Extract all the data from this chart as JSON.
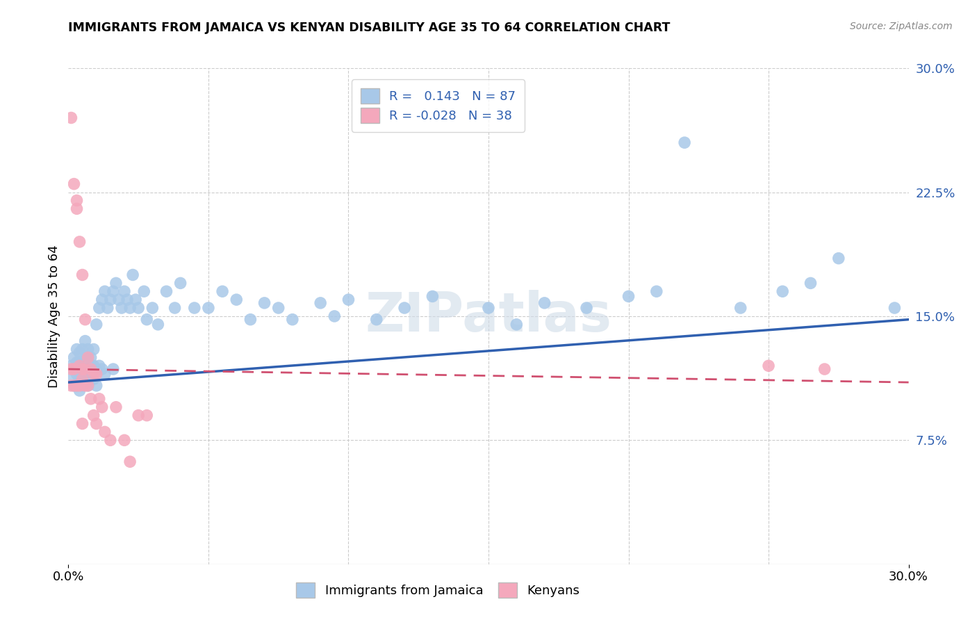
{
  "title": "IMMIGRANTS FROM JAMAICA VS KENYAN DISABILITY AGE 35 TO 64 CORRELATION CHART",
  "source": "Source: ZipAtlas.com",
  "ylabel": "Disability Age 35 to 64",
  "xlim": [
    0,
    0.3
  ],
  "ylim": [
    0,
    0.3
  ],
  "xtick_vals": [
    0.0,
    0.3
  ],
  "xticklabels": [
    "0.0%",
    "30.0%"
  ],
  "yticks_right": [
    0.075,
    0.15,
    0.225,
    0.3
  ],
  "ytick_right_labels": [
    "7.5%",
    "15.0%",
    "22.5%",
    "30.0%"
  ],
  "jamaica_R": 0.143,
  "jamaica_N": 87,
  "kenya_R": -0.028,
  "kenya_N": 38,
  "jamaica_color": "#a8c8e8",
  "kenya_color": "#f4a8bc",
  "jamaica_line_color": "#3060b0",
  "kenya_line_color": "#d05070",
  "background_color": "#ffffff",
  "watermark": "ZIPatlas",
  "legend_jamaica": "Immigrants from Jamaica",
  "legend_kenya": "Kenyans",
  "jamaica_x": [
    0.001,
    0.001,
    0.002,
    0.002,
    0.002,
    0.003,
    0.003,
    0.003,
    0.003,
    0.004,
    0.004,
    0.004,
    0.004,
    0.004,
    0.005,
    0.005,
    0.005,
    0.005,
    0.006,
    0.006,
    0.006,
    0.006,
    0.007,
    0.007,
    0.007,
    0.007,
    0.008,
    0.008,
    0.008,
    0.009,
    0.009,
    0.009,
    0.01,
    0.01,
    0.01,
    0.011,
    0.011,
    0.012,
    0.012,
    0.013,
    0.013,
    0.014,
    0.015,
    0.016,
    0.016,
    0.017,
    0.018,
    0.019,
    0.02,
    0.021,
    0.022,
    0.023,
    0.024,
    0.025,
    0.027,
    0.028,
    0.03,
    0.032,
    0.035,
    0.038,
    0.04,
    0.045,
    0.05,
    0.055,
    0.06,
    0.065,
    0.07,
    0.075,
    0.08,
    0.09,
    0.095,
    0.1,
    0.11,
    0.12,
    0.13,
    0.15,
    0.16,
    0.17,
    0.185,
    0.2,
    0.21,
    0.22,
    0.24,
    0.255,
    0.265,
    0.275,
    0.295
  ],
  "jamaica_y": [
    0.12,
    0.113,
    0.125,
    0.108,
    0.118,
    0.122,
    0.115,
    0.108,
    0.13,
    0.118,
    0.112,
    0.128,
    0.105,
    0.122,
    0.13,
    0.115,
    0.108,
    0.12,
    0.125,
    0.118,
    0.112,
    0.135,
    0.125,
    0.115,
    0.108,
    0.13,
    0.12,
    0.125,
    0.115,
    0.13,
    0.12,
    0.112,
    0.145,
    0.118,
    0.108,
    0.155,
    0.12,
    0.16,
    0.118,
    0.165,
    0.115,
    0.155,
    0.16,
    0.165,
    0.118,
    0.17,
    0.16,
    0.155,
    0.165,
    0.16,
    0.155,
    0.175,
    0.16,
    0.155,
    0.165,
    0.148,
    0.155,
    0.145,
    0.165,
    0.155,
    0.17,
    0.155,
    0.155,
    0.165,
    0.16,
    0.148,
    0.158,
    0.155,
    0.148,
    0.158,
    0.15,
    0.16,
    0.148,
    0.155,
    0.162,
    0.155,
    0.145,
    0.158,
    0.155,
    0.162,
    0.165,
    0.255,
    0.155,
    0.165,
    0.17,
    0.185,
    0.155
  ],
  "kenya_x": [
    0.001,
    0.001,
    0.001,
    0.002,
    0.002,
    0.002,
    0.003,
    0.003,
    0.003,
    0.004,
    0.004,
    0.004,
    0.005,
    0.005,
    0.005,
    0.005,
    0.006,
    0.006,
    0.006,
    0.007,
    0.007,
    0.008,
    0.008,
    0.009,
    0.009,
    0.01,
    0.01,
    0.011,
    0.012,
    0.013,
    0.015,
    0.017,
    0.02,
    0.022,
    0.025,
    0.028,
    0.25,
    0.27
  ],
  "kenya_y": [
    0.118,
    0.108,
    0.27,
    0.23,
    0.118,
    0.108,
    0.22,
    0.215,
    0.108,
    0.195,
    0.108,
    0.12,
    0.175,
    0.118,
    0.112,
    0.085,
    0.148,
    0.118,
    0.108,
    0.125,
    0.108,
    0.118,
    0.1,
    0.115,
    0.09,
    0.115,
    0.085,
    0.1,
    0.095,
    0.08,
    0.075,
    0.095,
    0.075,
    0.062,
    0.09,
    0.09,
    0.12,
    0.118
  ],
  "jamaica_trend_x": [
    0.0,
    0.3
  ],
  "jamaica_trend_y": [
    0.11,
    0.148
  ],
  "kenya_trend_x": [
    0.0,
    0.3
  ],
  "kenya_trend_y": [
    0.118,
    0.11
  ]
}
